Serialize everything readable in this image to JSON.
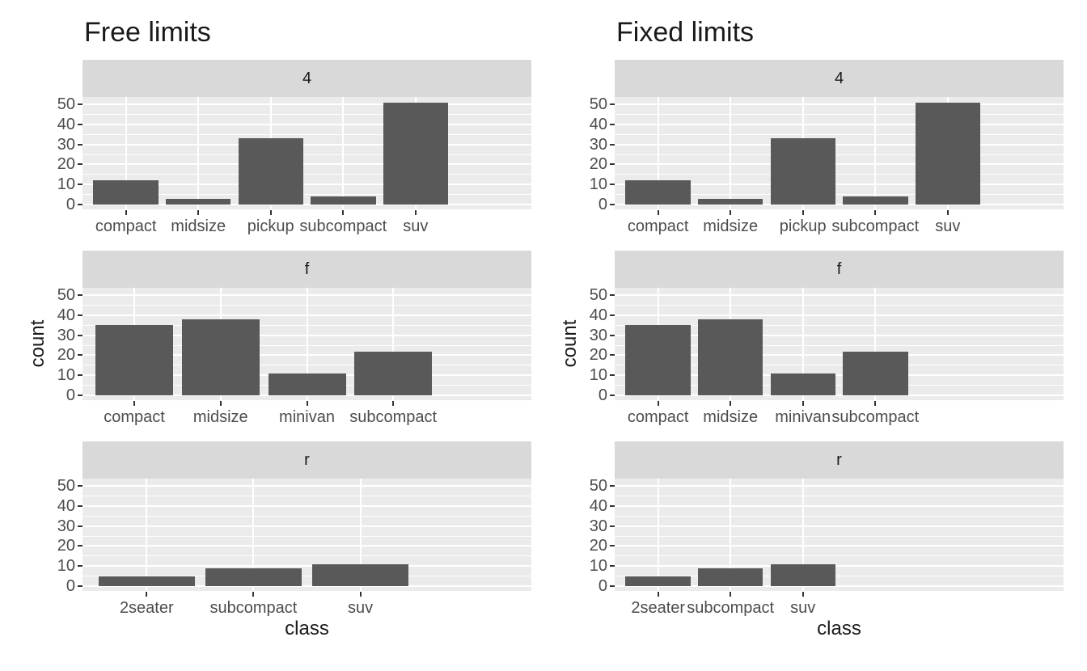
{
  "page": {
    "background_color": "#ffffff",
    "text_color_axis": "#4d4d4d",
    "text_color_strip": "#1a1a1a",
    "tick_color": "#333333"
  },
  "chart_data": [
    {
      "type": "bar",
      "title": "Free limits",
      "xlabel": "class",
      "ylabel": "count",
      "facet_labels": [
        "4",
        "f",
        "r"
      ],
      "yticks": [
        0,
        10,
        20,
        30,
        40,
        50
      ],
      "ylim": [
        0,
        53.55
      ],
      "grid": "on",
      "legend": "none",
      "x_scale_mode": "free",
      "bar_color": "#595959",
      "panel_bg": "#ebebeb",
      "strip_bg": "#d9d9d9",
      "grid_color": "#ffffff",
      "facets": [
        {
          "label": "4",
          "categories": [
            "compact",
            "midsize",
            "pickup",
            "subcompact",
            "suv"
          ],
          "values": [
            12,
            3,
            33,
            4,
            51
          ]
        },
        {
          "label": "f",
          "categories": [
            "compact",
            "midsize",
            "minivan",
            "subcompact"
          ],
          "values": [
            35,
            38,
            11,
            22
          ]
        },
        {
          "label": "r",
          "categories": [
            "2seater",
            "subcompact",
            "suv"
          ],
          "values": [
            5,
            9,
            11
          ]
        }
      ]
    },
    {
      "type": "bar",
      "title": "Fixed limits",
      "xlabel": "class",
      "ylabel": "count",
      "facet_labels": [
        "4",
        "f",
        "r"
      ],
      "yticks": [
        0,
        10,
        20,
        30,
        40,
        50
      ],
      "ylim": [
        0,
        53.55
      ],
      "grid": "on",
      "legend": "none",
      "x_scale_mode": "fixed_slots",
      "bar_color": "#595959",
      "panel_bg": "#ebebeb",
      "strip_bg": "#d9d9d9",
      "grid_color": "#ffffff",
      "facets": [
        {
          "label": "4",
          "categories": [
            "compact",
            "midsize",
            "pickup",
            "subcompact",
            "suv"
          ],
          "values": [
            12,
            3,
            33,
            4,
            51
          ]
        },
        {
          "label": "f",
          "categories": [
            "compact",
            "midsize",
            "minivan",
            "subcompact"
          ],
          "values": [
            35,
            38,
            11,
            22
          ]
        },
        {
          "label": "r",
          "categories": [
            "2seater",
            "subcompact",
            "suv"
          ],
          "values": [
            5,
            9,
            11
          ]
        }
      ]
    }
  ]
}
